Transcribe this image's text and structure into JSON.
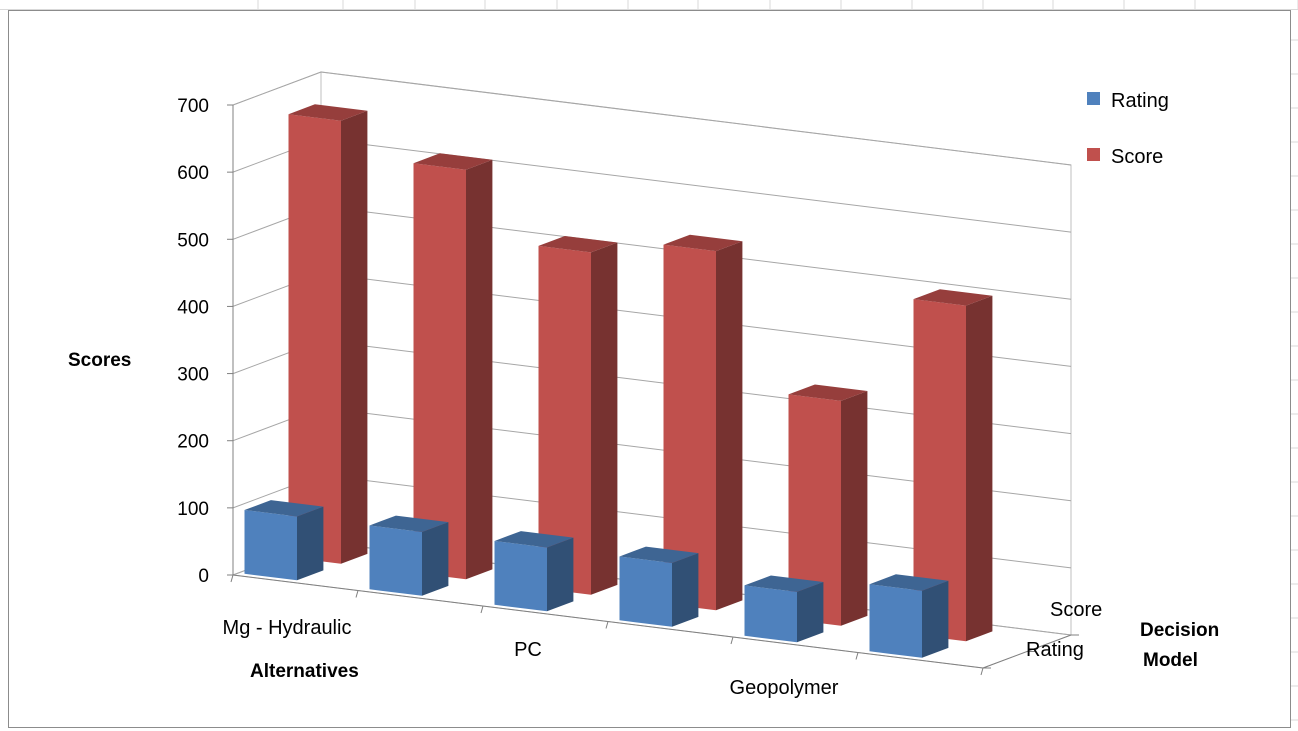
{
  "chart_data": {
    "type": "bar",
    "title": "",
    "ylabel": "Scores",
    "xlabel": "Alternatives",
    "zlabel": "Decision Model",
    "ylim": [
      0,
      700
    ],
    "yticks": [
      "0",
      "100",
      "200",
      "300",
      "400",
      "500",
      "600",
      "700"
    ],
    "categories": [
      "Mg - Hydraulic",
      "",
      "PC",
      "",
      "Geopolymer",
      ""
    ],
    "category_labels_shown": [
      "Mg - Hydraulic",
      "PC",
      "Geopolymer"
    ],
    "depth_labels": [
      "Score",
      "Rating"
    ],
    "series": [
      {
        "name": "Rating",
        "color": "#4f81bd",
        "values": [
          95,
          95,
          95,
          95,
          75,
          100
        ]
      },
      {
        "name": "Score",
        "color": "#c0504d",
        "values": [
          660,
          610,
          510,
          535,
          335,
          500
        ]
      }
    ],
    "legend": {
      "position": "top-right",
      "items": [
        "Rating",
        "Score"
      ]
    },
    "grid": true
  }
}
